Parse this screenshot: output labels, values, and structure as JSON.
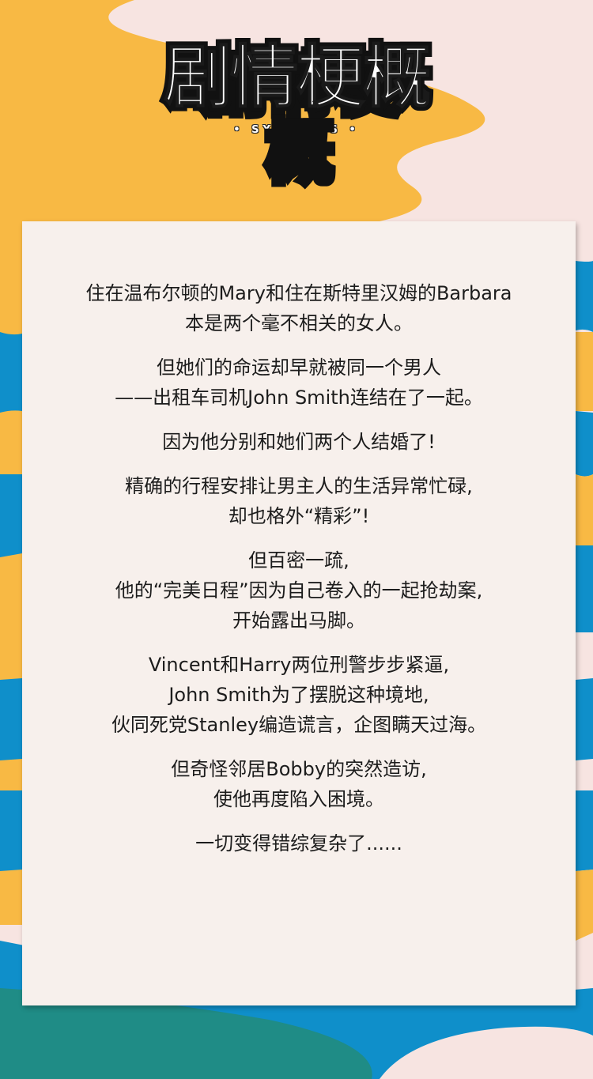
{
  "header": {
    "title": "剧情梗概",
    "subtitle": "SYNOPSIS"
  },
  "colors": {
    "background": "#f7e4e1",
    "orange_wave": "#f8b944",
    "blue_wave": "#0f8fca",
    "teal_wave": "#1f8c86",
    "card": "#f7f0ec",
    "text": "#1c1c1c"
  },
  "synopsis": {
    "paragraphs": [
      [
        "住在温布尔顿的Mary和住在斯特里汉姆的Barbara",
        "本是两个毫不相关的女人。"
      ],
      [
        "但她们的命运却早就被同一个男人",
        "——出租车司机John Smith连结在了一起。"
      ],
      [
        "因为他分别和她们两个人结婚了!"
      ],
      [
        "精确的行程安排让男主人的生活异常忙碌,",
        "却也格外“精彩”!"
      ],
      [
        "但百密一疏,",
        "他的“完美日程”因为自己卷入的一起抢劫案,",
        "开始露出马脚。"
      ],
      [
        "Vincent和Harry两位刑警步步紧逼,",
        "John Smith为了摆脱这种境地,",
        "伙同死党Stanley编造谎言，企图瞒天过海。"
      ],
      [
        "但奇怪邻居Bobby的突然造访,",
        "使他再度陷入困境。"
      ],
      [
        "一切变得错综复杂了......"
      ]
    ]
  }
}
